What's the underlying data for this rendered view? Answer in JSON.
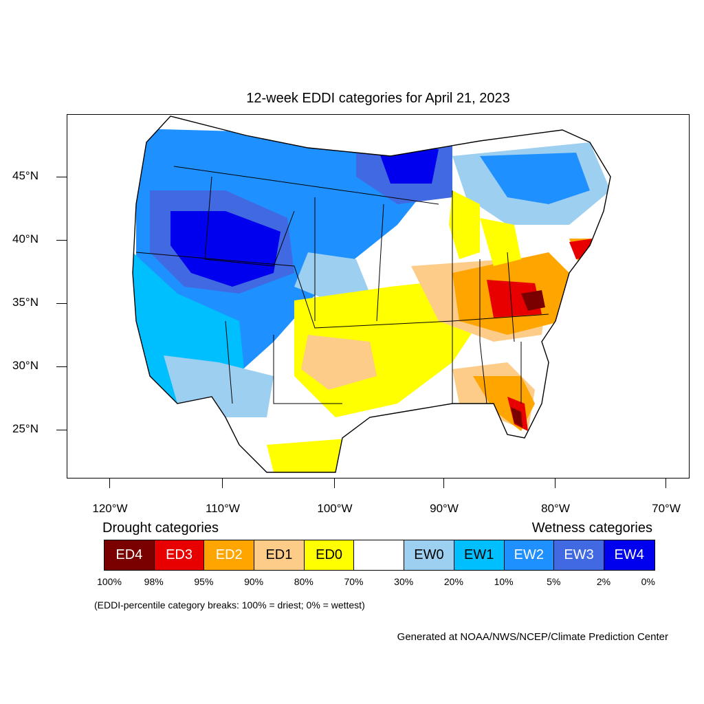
{
  "title": "12-week EDDI categories for April 21, 2023",
  "lat_labels": [
    "45°N",
    "40°N",
    "35°N",
    "30°N",
    "25°N"
  ],
  "lon_labels": [
    "120°W",
    "110°W",
    "100°W",
    "90°W",
    "80°W",
    "70°W"
  ],
  "legend": {
    "drought_heading": "Drought categories",
    "wetness_heading": "Wetness categories",
    "categories": [
      {
        "label": "ED4",
        "color": "#7a0000",
        "text_color": "#ffffff"
      },
      {
        "label": "ED3",
        "color": "#e80000",
        "text_color": "#ffffff"
      },
      {
        "label": "ED2",
        "color": "#ffa500",
        "text_color": "#ffffff"
      },
      {
        "label": "ED1",
        "color": "#fccc88",
        "text_color": "#000000"
      },
      {
        "label": "ED0",
        "color": "#ffff00",
        "text_color": "#000000"
      },
      {
        "label": "",
        "color": "#ffffff",
        "text_color": "#000000"
      },
      {
        "label": "EW0",
        "color": "#9ccff0",
        "text_color": "#000000"
      },
      {
        "label": "EW1",
        "color": "#00bfff",
        "text_color": "#000000"
      },
      {
        "label": "EW2",
        "color": "#1e90ff",
        "text_color": "#ffffff"
      },
      {
        "label": "EW3",
        "color": "#4169e1",
        "text_color": "#ffffff"
      },
      {
        "label": "EW4",
        "color": "#0000ee",
        "text_color": "#ffffff"
      }
    ],
    "percent_breaks": [
      "100%",
      "98%",
      "95%",
      "90%",
      "80%",
      "70%",
      "30%",
      "20%",
      "10%",
      "5%",
      "2%",
      "0%"
    ]
  },
  "note": "(EDDI-percentile category breaks: 100% = driest; 0% = wettest)",
  "credit": "Generated at NOAA/NWS/NCEP/Climate Prediction Center"
}
